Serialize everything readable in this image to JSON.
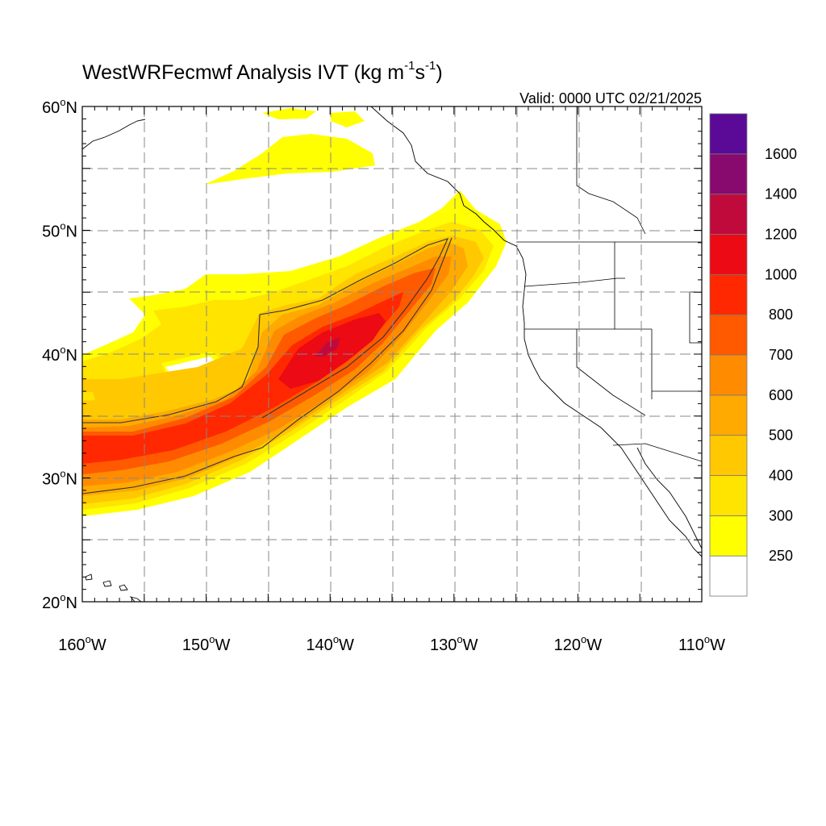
{
  "title": {
    "main": "WestWRFecmwf Analysis IVT (kg m",
    "exp1": "-1",
    "mid": "s",
    "exp2": "-1",
    "close": ")"
  },
  "valid_time": "Valid: 0000 UTC 02/21/2025",
  "map": {
    "projection": "cylindrical equidistant",
    "lon_range": [
      -160,
      -110
    ],
    "lat_range": [
      20,
      60
    ],
    "gridlines": "dashed gray every 5 degrees",
    "lat_labels": [
      {
        "value": 60,
        "deg": "60",
        "hemi": "N"
      },
      {
        "value": 50,
        "deg": "50",
        "hemi": "N"
      },
      {
        "value": 40,
        "deg": "40",
        "hemi": "N"
      },
      {
        "value": 30,
        "deg": "30",
        "hemi": "N"
      },
      {
        "value": 20,
        "deg": "20",
        "hemi": "N"
      }
    ],
    "lon_labels": [
      {
        "value": -160,
        "deg": "160",
        "hemi": "W"
      },
      {
        "value": -150,
        "deg": "150",
        "hemi": "W"
      },
      {
        "value": -140,
        "deg": "140",
        "hemi": "W"
      },
      {
        "value": -130,
        "deg": "130",
        "hemi": "W"
      },
      {
        "value": -120,
        "deg": "120",
        "hemi": "W"
      },
      {
        "value": -110,
        "deg": "110",
        "hemi": "W"
      }
    ],
    "ivt_field": "atmospheric river plume from ~32N 160W to ~52N 126W, peak IVT ~1000 kg/m/s near 41N 140W; secondary weak band near 55N 147W"
  },
  "colorbar": {
    "labels": [
      "1600",
      "1400",
      "1200",
      "1000",
      "800",
      "700",
      "600",
      "500",
      "400",
      "300",
      "250"
    ],
    "colors": [
      "#ffffff",
      "#ffff00",
      "#ffe400",
      "#ffc800",
      "#ffaa00",
      "#ff8c00",
      "#ff5a00",
      "#ff2800",
      "#ec0a14",
      "#c00a3c",
      "#880a6e",
      "#5a0a96"
    ]
  },
  "ivt_colors": {
    "c250": "#ffff00",
    "c300": "#ffe400",
    "c400": "#ffc800",
    "c500": "#ffaa00",
    "c600": "#ff8c00",
    "c700": "#ff5a00",
    "c800": "#ff2800",
    "c1000": "#ec0a14",
    "c1200": "#c00a3c"
  }
}
